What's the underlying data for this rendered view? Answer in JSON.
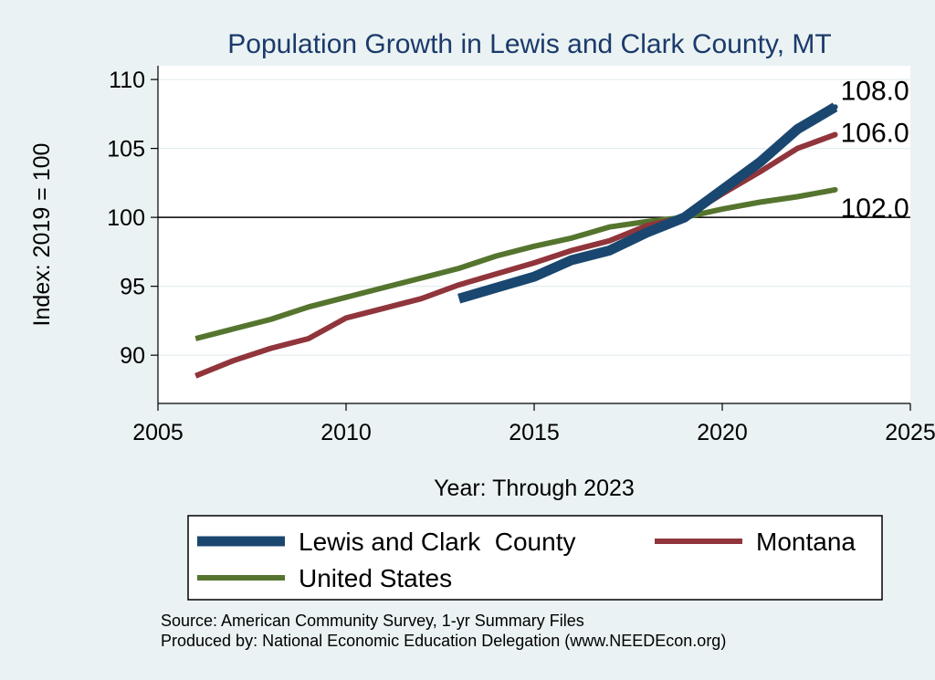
{
  "chart_data": {
    "type": "line",
    "title": "Population Growth in Lewis and Clark County, MT",
    "xlabel": "Year: Through 2023",
    "ylabel": "Index: 2019 = 100",
    "xlim": [
      2005,
      2025
    ],
    "ylim": [
      86.5,
      111
    ],
    "x_ticks": [
      "2005",
      "2010",
      "2015",
      "2020",
      "2025"
    ],
    "x_tick_values": [
      2005,
      2010,
      2015,
      2020,
      2025
    ],
    "y_ticks": [
      "90",
      "95",
      "100",
      "105",
      "110"
    ],
    "y_tick_values": [
      90,
      95,
      100,
      105,
      110
    ],
    "reference_line": 100,
    "grid": true,
    "legend_position": "bottom",
    "series": [
      {
        "name": "Lewis and Clark  County",
        "color": "#1a476f",
        "end_label": "108.0",
        "x": [
          2013,
          2014,
          2015,
          2016,
          2017,
          2018,
          2019,
          2020,
          2021,
          2022,
          2023
        ],
        "values": [
          94.1,
          94.9,
          95.7,
          96.9,
          97.6,
          98.9,
          100.0,
          102.0,
          104.0,
          106.4,
          108.0
        ]
      },
      {
        "name": "Montana",
        "color": "#90353b",
        "end_label": "106.0",
        "x": [
          2006,
          2007,
          2008,
          2009,
          2010,
          2011,
          2012,
          2013,
          2014,
          2015,
          2016,
          2017,
          2018,
          2019,
          2020,
          2021,
          2022,
          2023
        ],
        "values": [
          88.5,
          89.6,
          90.5,
          91.2,
          92.7,
          93.4,
          94.1,
          95.1,
          95.9,
          96.7,
          97.6,
          98.3,
          99.4,
          100.0,
          101.7,
          103.3,
          105.0,
          106.0
        ]
      },
      {
        "name": "United States",
        "color": "#55752f",
        "end_label": "102.0",
        "x": [
          2006,
          2007,
          2008,
          2009,
          2010,
          2011,
          2012,
          2013,
          2014,
          2015,
          2016,
          2017,
          2018,
          2019,
          2020,
          2021,
          2022,
          2023
        ],
        "values": [
          91.2,
          91.9,
          92.6,
          93.5,
          94.2,
          94.9,
          95.6,
          96.3,
          97.2,
          97.9,
          98.5,
          99.3,
          99.7,
          100.0,
          100.6,
          101.1,
          101.5,
          102.0
        ]
      }
    ],
    "notes": [
      "Source: American Community Survey, 1-yr Summary Files",
      "Produced by: National Economic Education Delegation (www.NEEDEcon.org)"
    ]
  }
}
